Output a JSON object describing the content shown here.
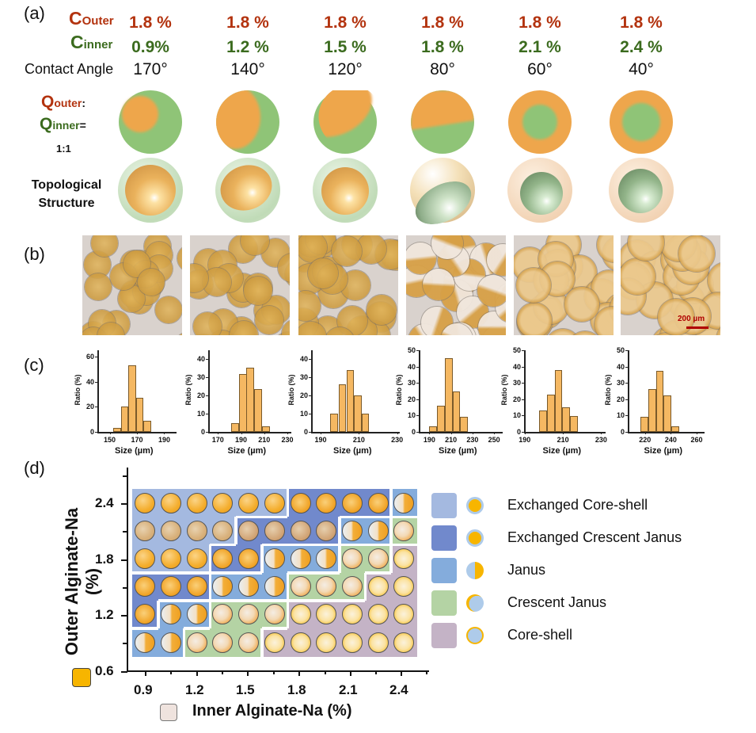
{
  "panel_a": {
    "label": "(a)",
    "c_outer": {
      "main": "C",
      "sub": "Outer"
    },
    "c_inner": {
      "main": "C",
      "sub": "inner"
    },
    "contact_angle_label": "Contact Angle",
    "columns": [
      {
        "outer": "1.8 %",
        "inner": "0.9%",
        "angle": "170°"
      },
      {
        "outer": "1.8 %",
        "inner": "1.2 %",
        "angle": "140°"
      },
      {
        "outer": "1.8 %",
        "inner": "1.5 %",
        "angle": "120°"
      },
      {
        "outer": "1.8 %",
        "inner": "1.8 %",
        "angle": "80°"
      },
      {
        "outer": "1.8 %",
        "inner": "2.1 %",
        "angle": "60°"
      },
      {
        "outer": "1.8 %",
        "inner": "2.4 %",
        "angle": "40°"
      }
    ],
    "q_outer": {
      "main": "Q",
      "sub": "outer",
      "suffix": ":"
    },
    "q_inner": {
      "main": "Q",
      "sub": "inner",
      "suffix": "="
    },
    "q_ratio": "1:1",
    "topology_label_1": "Topological",
    "topology_label_2": "Structure",
    "colors": {
      "outer_phase": "#eea64c",
      "inner_phase": "#8fc477",
      "c_outer_text": "#b3330f",
      "c_inner_text": "#3b6b1e"
    }
  },
  "panel_b": {
    "label": "(b)",
    "scale_bar": "200 µm",
    "scale_bar_color": "#b00000"
  },
  "panel_c": {
    "label": "(c)"
  },
  "chart_data": [
    {
      "type": "bar",
      "xlabel": "Size (µm)",
      "ylabel": "Ratio (%)",
      "bin_width": 5.5,
      "x": [
        155.5,
        161,
        166.5,
        172,
        177.5
      ],
      "values": [
        3,
        20,
        53,
        27,
        9
      ],
      "xlim": [
        141,
        199
      ],
      "ylim": [
        0,
        65
      ],
      "xticks": [
        150,
        170,
        190
      ],
      "yticks": [
        0,
        20,
        40,
        60
      ],
      "grid": false,
      "color": "#f5b862"
    },
    {
      "type": "bar",
      "xlabel": "Size (µm)",
      "ylabel": "Ratio (%)",
      "bin_width": 6.8,
      "x": [
        184.6,
        191.4,
        198.1,
        204.9,
        211.6
      ],
      "values": [
        5,
        32,
        35.5,
        23.5,
        3
      ],
      "xlim": [
        161.6,
        233.4
      ],
      "ylim": [
        0,
        45
      ],
      "xticks": [
        170,
        190,
        210,
        230
      ],
      "yticks": [
        0,
        10,
        20,
        30,
        40
      ],
      "grid": false,
      "color": "#f5b862"
    },
    {
      "type": "bar",
      "xlabel": "Size (µm)",
      "ylabel": "Ratio (%)",
      "bin_width": 4,
      "x": [
        197.1,
        201.4,
        205.5,
        209.4,
        213.4
      ],
      "values": [
        10,
        26,
        34,
        20,
        10
      ],
      "xlim": [
        185,
        231.4
      ],
      "ylim": [
        0,
        45
      ],
      "xticks": [
        190,
        210,
        230
      ],
      "yticks": [
        0,
        10,
        20,
        30,
        40
      ],
      "grid": false,
      "color": "#f5b862"
    },
    {
      "type": "bar",
      "xlabel": "Size (µm)",
      "ylabel": "Ratio (%)",
      "bin_width": 7,
      "x": [
        193.5,
        200.9,
        208,
        214.9,
        221.9
      ],
      "values": [
        3.5,
        16,
        45,
        25,
        9
      ],
      "xlim": [
        180.2,
        258
      ],
      "ylim": [
        0,
        50
      ],
      "xticks": [
        190,
        210,
        230,
        250
      ],
      "yticks": [
        0,
        10,
        20,
        30,
        40,
        50
      ],
      "grid": false,
      "color": "#f5b862"
    },
    {
      "type": "bar",
      "xlabel": "Size (µm)",
      "ylabel": "Ratio (%)",
      "bin_width": 4,
      "x": [
        199.6,
        203.7,
        207.7,
        211.7,
        215.8
      ],
      "values": [
        13,
        23,
        38,
        15,
        9.5
      ],
      "xlim": [
        189.7,
        232.3
      ],
      "ylim": [
        0,
        50
      ],
      "xticks": [
        190,
        210,
        230
      ],
      "yticks": [
        0,
        10,
        20,
        30,
        40,
        50
      ],
      "grid": false,
      "color": "#f5b862"
    },
    {
      "type": "bar",
      "xlabel": "Size (µm)",
      "ylabel": "Ratio (%)",
      "bin_width": 6,
      "x": [
        219.5,
        225.5,
        231.5,
        237.5,
        243.4
      ],
      "values": [
        9,
        26,
        37.5,
        22.5,
        3.5
      ],
      "xlim": [
        206.7,
        266.1
      ],
      "ylim": [
        0,
        50
      ],
      "xticks": [
        220,
        240,
        260
      ],
      "yticks": [
        0,
        10,
        20,
        30,
        40,
        50
      ],
      "grid": false,
      "color": "#f5b862"
    }
  ],
  "panel_d": {
    "label": "(d)",
    "y_label": "Outer Alginate-Na (%)",
    "x_label": "Inner Alginate-Na (%)",
    "x_ticks": [
      "0.9",
      "1.2",
      "1.5",
      "1.8",
      "2.1",
      "2.4"
    ],
    "y_ticks": [
      "2.4",
      "1.8",
      "1.2",
      "0.6"
    ],
    "outer_swatch_color": "#f7b500",
    "inner_swatch_color": "#efe3de",
    "legend": [
      {
        "key": "ECS",
        "label": "Exchanged Core-shell",
        "color": "#a4b9e0"
      },
      {
        "key": "ECJ",
        "label": "Exchanged Crescent Janus",
        "color": "#7189cc"
      },
      {
        "key": "J",
        "label": "Janus",
        "color": "#84acdc"
      },
      {
        "key": "CJ",
        "label": "Crescent Janus",
        "color": "#b4d3a4"
      },
      {
        "key": "CS",
        "label": "Core-shell",
        "color": "#c4b3c6"
      }
    ],
    "grid_rows_top_to_bottom": [
      [
        "ECS",
        "ECS",
        "ECS",
        "ECS",
        "ECS",
        "ECS",
        "ECJ",
        "ECJ",
        "ECJ",
        "ECJ",
        "J"
      ],
      [
        "ECS",
        "ECS",
        "ECS",
        "ECS",
        "ECJ",
        "ECJ",
        "ECJ",
        "ECJ",
        "J",
        "J",
        "CJ"
      ],
      [
        "ECS",
        "ECS",
        "ECS",
        "ECJ",
        "ECJ",
        "J",
        "J",
        "J",
        "CJ",
        "CJ",
        "CS"
      ],
      [
        "ECJ",
        "ECJ",
        "ECJ",
        "J",
        "J",
        "J",
        "CJ",
        "CJ",
        "CJ",
        "CS",
        "CS"
      ],
      [
        "ECJ",
        "J",
        "J",
        "CJ",
        "CJ",
        "CJ",
        "CS",
        "CS",
        "CS",
        "CS",
        "CS"
      ],
      [
        "J",
        "J",
        "CJ",
        "CJ",
        "CJ",
        "CS",
        "CS",
        "CS",
        "CS",
        "CS",
        "CS"
      ]
    ]
  }
}
